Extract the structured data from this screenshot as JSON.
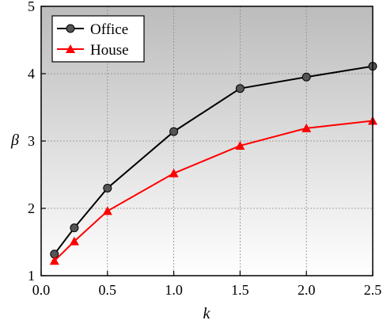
{
  "chart_data": {
    "type": "line",
    "title": "",
    "xlabel": "k",
    "ylabel": "β",
    "xlim": [
      0.0,
      2.5
    ],
    "ylim": [
      1,
      5
    ],
    "x_ticks": [
      "0.0",
      "0.5",
      "1.0",
      "1.5",
      "2.0",
      "2.5"
    ],
    "y_ticks": [
      "1",
      "2",
      "3",
      "4",
      "5"
    ],
    "grid": true,
    "legend_position": "top-left",
    "x": [
      0.1,
      0.25,
      0.5,
      1.0,
      1.5,
      2.0,
      2.5
    ],
    "series": [
      {
        "name": "Office",
        "values": [
          1.32,
          1.71,
          2.3,
          3.14,
          3.78,
          3.95,
          4.11
        ],
        "color": "#000000",
        "marker": "circle"
      },
      {
        "name": "House",
        "values": [
          1.22,
          1.51,
          1.96,
          2.52,
          2.93,
          3.19,
          3.3
        ],
        "color": "#ff0000",
        "marker": "triangle"
      }
    ]
  }
}
